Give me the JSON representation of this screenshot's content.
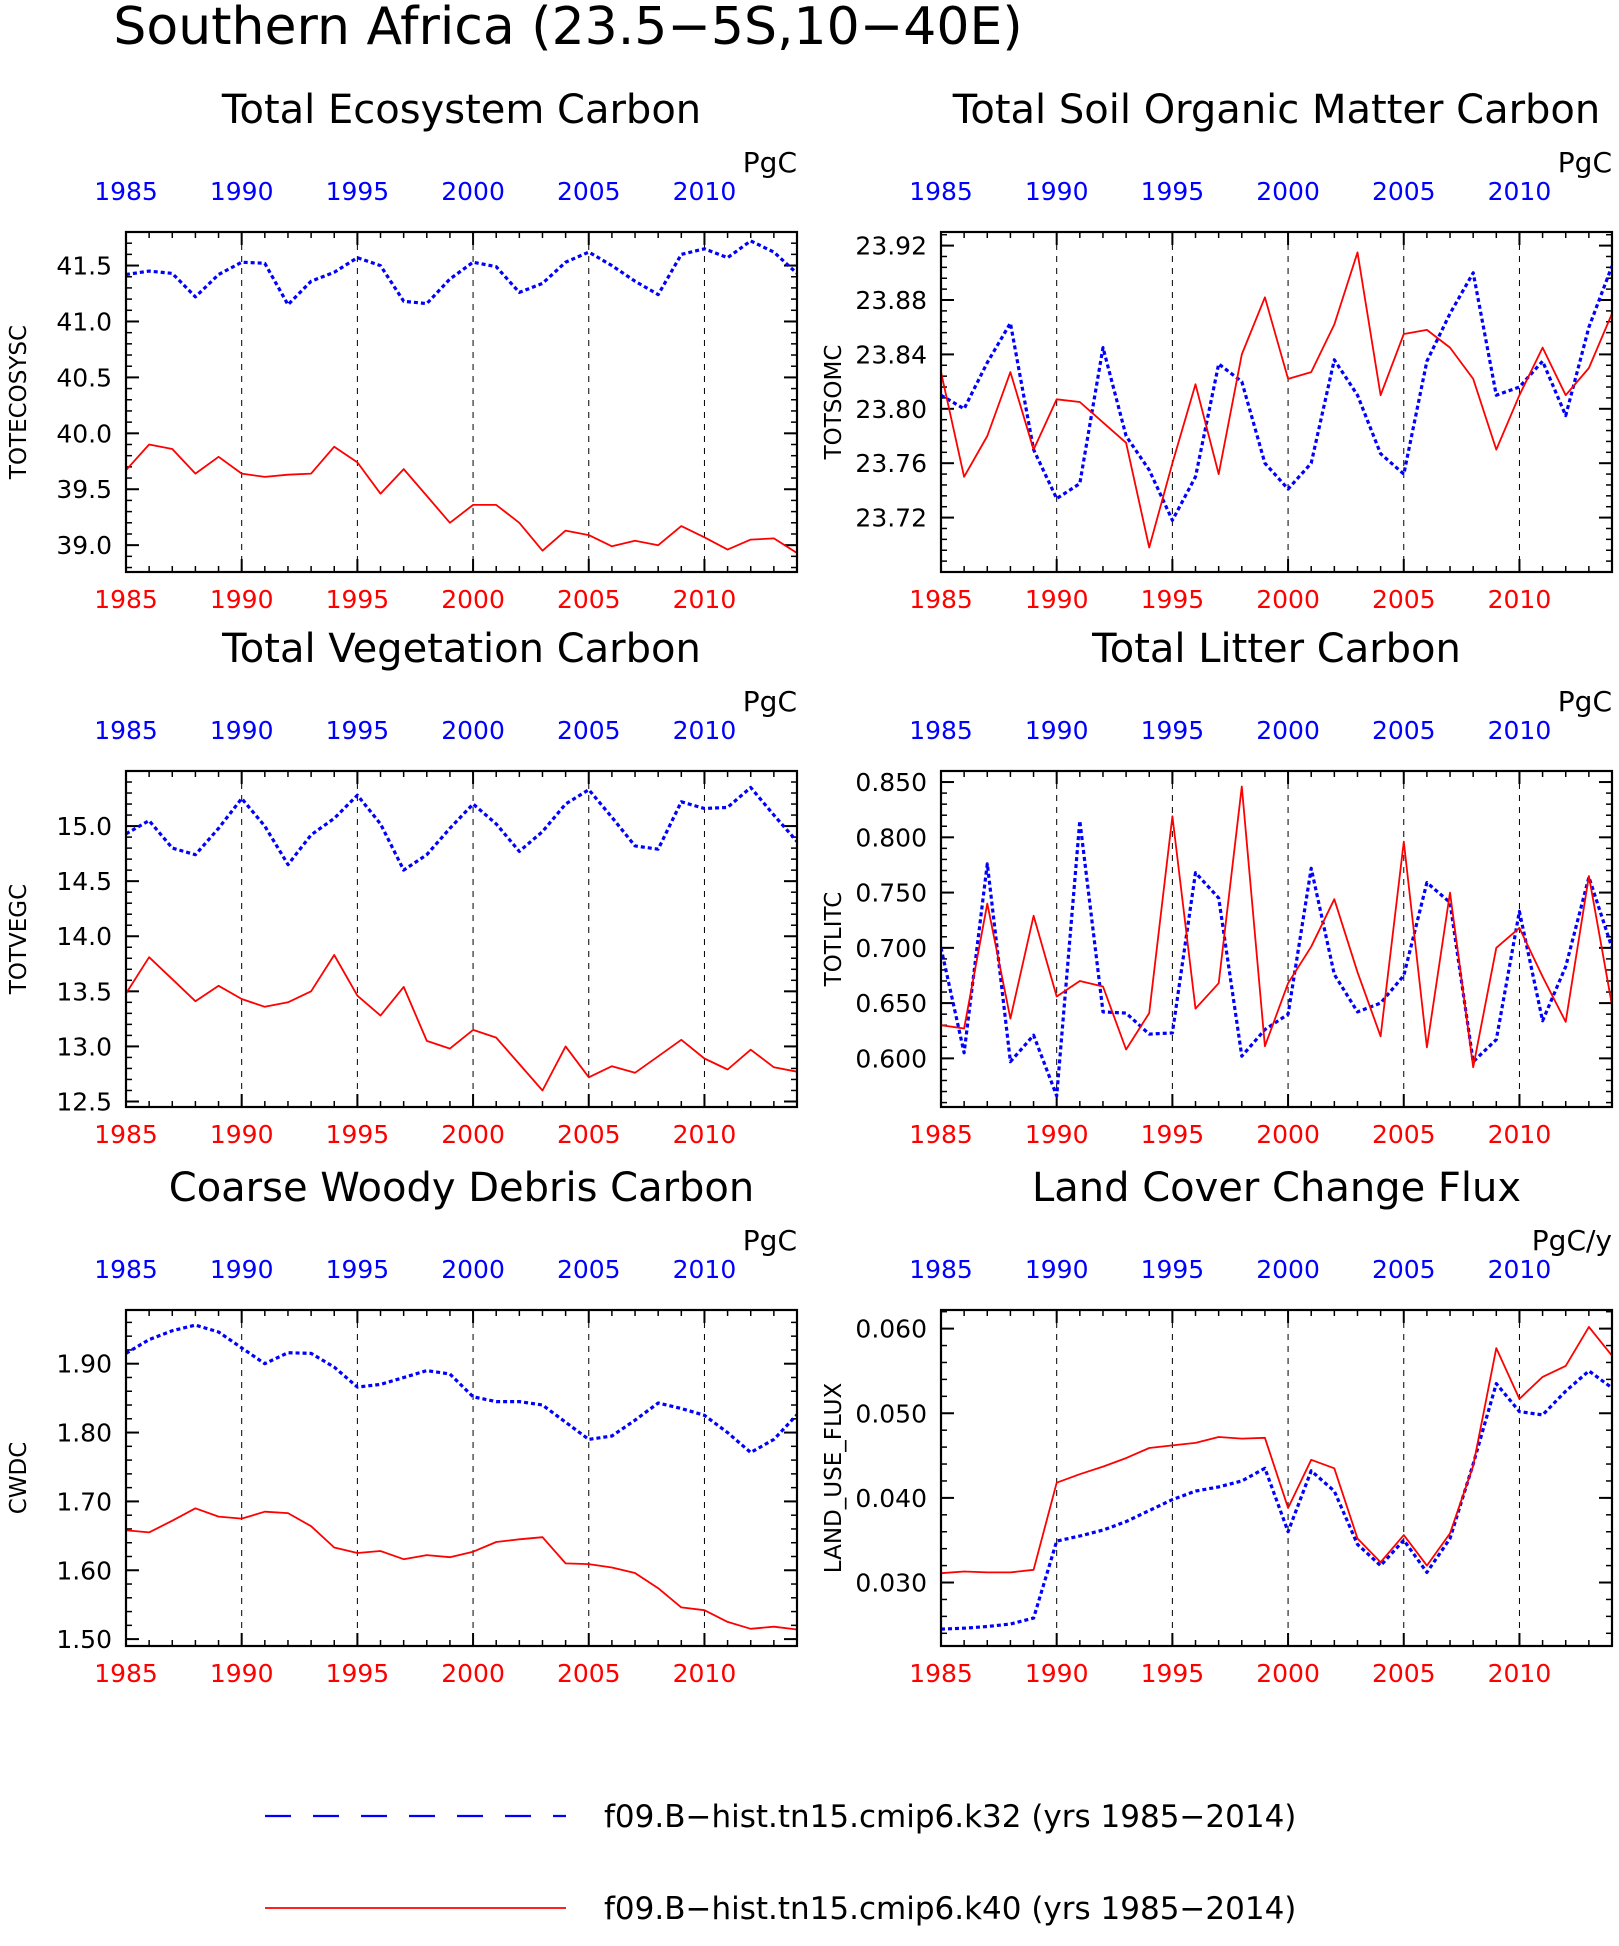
{
  "figure": {
    "title": "Southern Africa (23.5−5S,10−40E)",
    "colors": {
      "run_k32": "#0000ff",
      "run_k40": "#ff0000",
      "axis": "#000000"
    }
  },
  "legend": {
    "placement": "bottom-center",
    "entries": [
      {
        "label": "f09.B−hist.tn15.cmip6.k32 (yrs 1985−2014)",
        "color": "#0000ff",
        "style": "dashed"
      },
      {
        "label": "f09.B−hist.tn15.cmip6.k40 (yrs 1985−2014)",
        "color": "#ff0000",
        "style": "solid"
      }
    ]
  },
  "chart_data": [
    {
      "type": "line",
      "title": "Total Ecosystem Carbon",
      "ylabel": "TOTECOSYSC",
      "units": "PgC",
      "xlim": [
        1985,
        2014
      ],
      "ylim": [
        38.76,
        41.8
      ],
      "yticks": [
        39.0,
        39.5,
        40.0,
        40.5,
        41.0,
        41.5
      ],
      "ytick_labels": [
        "39.0",
        "39.5",
        "40.0",
        "40.5",
        "41.0",
        "41.5"
      ],
      "xticks": [
        1985,
        1990,
        1995,
        2000,
        2005,
        2010
      ],
      "x_tick_labels_top": [
        "1985",
        "1990",
        "1995",
        "2000",
        "2005",
        "2010"
      ],
      "x_tick_labels_bottom": [
        "1985",
        "1990",
        "1995",
        "2000",
        "2005",
        "2010"
      ],
      "x": [
        1985,
        1986,
        1987,
        1988,
        1989,
        1990,
        1991,
        1992,
        1993,
        1994,
        1995,
        1996,
        1997,
        1998,
        1999,
        2000,
        2001,
        2002,
        2003,
        2004,
        2005,
        2006,
        2007,
        2008,
        2009,
        2010,
        2011,
        2012,
        2013,
        2014
      ],
      "grid": "vertical-dashed",
      "series": [
        {
          "color": "#0000ff",
          "style": "dashed",
          "values": [
            41.42,
            41.45,
            41.43,
            41.22,
            41.42,
            41.53,
            41.52,
            41.15,
            41.36,
            41.44,
            41.57,
            41.5,
            41.18,
            41.16,
            41.38,
            41.53,
            41.49,
            41.26,
            41.34,
            41.53,
            41.62,
            41.5,
            41.36,
            41.24,
            41.6,
            41.65,
            41.57,
            41.72,
            41.62,
            41.43
          ]
        },
        {
          "color": "#ff0000",
          "style": "solid",
          "values": [
            39.67,
            39.9,
            39.86,
            39.64,
            39.79,
            39.64,
            39.61,
            39.63,
            39.64,
            39.88,
            39.74,
            39.46,
            39.68,
            39.44,
            39.2,
            39.36,
            39.36,
            39.2,
            38.95,
            39.13,
            39.09,
            38.99,
            39.04,
            39.0,
            39.17,
            39.07,
            38.96,
            39.05,
            39.06,
            38.93
          ]
        }
      ]
    },
    {
      "type": "line",
      "title": "Total Soil Organic Matter Carbon",
      "ylabel": "TOTSOMC",
      "units": "PgC",
      "xlim": [
        1985,
        2014
      ],
      "ylim": [
        23.68,
        23.93
      ],
      "yticks": [
        23.72,
        23.76,
        23.8,
        23.84,
        23.88,
        23.92
      ],
      "ytick_labels": [
        "23.72",
        "23.76",
        "23.80",
        "23.84",
        "23.88",
        "23.92"
      ],
      "xticks": [
        1985,
        1990,
        1995,
        2000,
        2005,
        2010
      ],
      "x_tick_labels_top": [
        "1985",
        "1990",
        "1995",
        "2000",
        "2005",
        "2010"
      ],
      "x_tick_labels_bottom": [
        "1985",
        "1990",
        "1995",
        "2000",
        "2005",
        "2010"
      ],
      "x": [
        1985,
        1986,
        1987,
        1988,
        1989,
        1990,
        1991,
        1992,
        1993,
        1994,
        1995,
        1996,
        1997,
        1998,
        1999,
        2000,
        2001,
        2002,
        2003,
        2004,
        2005,
        2006,
        2007,
        2008,
        2009,
        2010,
        2011,
        2012,
        2013,
        2014
      ],
      "grid": "vertical-dashed",
      "series": [
        {
          "color": "#0000ff",
          "style": "dashed",
          "values": [
            23.81,
            23.8,
            23.834,
            23.863,
            23.77,
            23.734,
            23.745,
            23.845,
            23.78,
            23.755,
            23.718,
            23.75,
            23.833,
            23.82,
            23.76,
            23.741,
            23.76,
            23.836,
            23.81,
            23.767,
            23.752,
            23.835,
            23.87,
            23.9,
            23.81,
            23.816,
            23.835,
            23.795,
            23.86,
            23.905
          ]
        },
        {
          "color": "#ff0000",
          "style": "solid",
          "values": [
            23.827,
            23.75,
            23.78,
            23.827,
            23.77,
            23.807,
            23.805,
            23.79,
            23.775,
            23.698,
            23.76,
            23.818,
            23.752,
            23.84,
            23.882,
            23.822,
            23.827,
            23.862,
            23.915,
            23.81,
            23.855,
            23.858,
            23.845,
            23.822,
            23.77,
            23.81,
            23.845,
            23.81,
            23.83,
            23.87
          ]
        }
      ]
    },
    {
      "type": "line",
      "title": "Total Vegetation Carbon",
      "ylabel": "TOTVEGC",
      "units": "PgC",
      "xlim": [
        1985,
        2014
      ],
      "ylim": [
        12.45,
        15.5
      ],
      "yticks": [
        12.5,
        13.0,
        13.5,
        14.0,
        14.5,
        15.0
      ],
      "ytick_labels": [
        "12.5",
        "13.0",
        "13.5",
        "14.0",
        "14.5",
        "15.0"
      ],
      "xticks": [
        1985,
        1990,
        1995,
        2000,
        2005,
        2010
      ],
      "x_tick_labels_top": [
        "1985",
        "1990",
        "1995",
        "2000",
        "2005",
        "2010"
      ],
      "x_tick_labels_bottom": [
        "1985",
        "1990",
        "1995",
        "2000",
        "2005",
        "2010"
      ],
      "x": [
        1985,
        1986,
        1987,
        1988,
        1989,
        1990,
        1991,
        1992,
        1993,
        1994,
        1995,
        1996,
        1997,
        1998,
        1999,
        2000,
        2001,
        2002,
        2003,
        2004,
        2005,
        2006,
        2007,
        2008,
        2009,
        2010,
        2011,
        2012,
        2013,
        2014
      ],
      "grid": "vertical-dashed",
      "series": [
        {
          "color": "#0000ff",
          "style": "dashed",
          "values": [
            14.93,
            15.05,
            14.8,
            14.74,
            14.98,
            15.25,
            15.0,
            14.65,
            14.92,
            15.07,
            15.28,
            15.02,
            14.6,
            14.74,
            14.98,
            15.2,
            15.02,
            14.77,
            14.95,
            15.2,
            15.33,
            15.08,
            14.82,
            14.79,
            15.22,
            15.16,
            15.17,
            15.35,
            15.1,
            14.86
          ]
        },
        {
          "color": "#ff0000",
          "style": "solid",
          "values": [
            13.48,
            13.81,
            13.61,
            13.41,
            13.55,
            13.43,
            13.36,
            13.4,
            13.5,
            13.83,
            13.46,
            13.28,
            13.54,
            13.05,
            12.98,
            13.15,
            13.08,
            12.84,
            12.6,
            13.0,
            12.72,
            12.82,
            12.76,
            12.91,
            13.06,
            12.89,
            12.79,
            12.97,
            12.81,
            12.77
          ]
        }
      ]
    },
    {
      "type": "line",
      "title": "Total Litter Carbon",
      "ylabel": "TOTLITC",
      "units": "PgC",
      "xlim": [
        1985,
        2014
      ],
      "ylim": [
        0.556,
        0.86
      ],
      "yticks": [
        0.6,
        0.65,
        0.7,
        0.75,
        0.8,
        0.85
      ],
      "ytick_labels": [
        "0.600",
        "0.650",
        "0.700",
        "0.750",
        "0.800",
        "0.850"
      ],
      "xticks": [
        1985,
        1990,
        1995,
        2000,
        2005,
        2010
      ],
      "x_tick_labels_top": [
        "1985",
        "1990",
        "1995",
        "2000",
        "2005",
        "2010"
      ],
      "x_tick_labels_bottom": [
        "1985",
        "1990",
        "1995",
        "2000",
        "2005",
        "2010"
      ],
      "x": [
        1985,
        1986,
        1987,
        1988,
        1989,
        1990,
        1991,
        1992,
        1993,
        1994,
        1995,
        1996,
        1997,
        1998,
        1999,
        2000,
        2001,
        2002,
        2003,
        2004,
        2005,
        2006,
        2007,
        2008,
        2009,
        2010,
        2011,
        2012,
        2013,
        2014
      ],
      "grid": "vertical-dashed",
      "series": [
        {
          "color": "#0000ff",
          "style": "dashed",
          "values": [
            0.7,
            0.605,
            0.776,
            0.597,
            0.621,
            0.566,
            0.815,
            0.642,
            0.641,
            0.622,
            0.623,
            0.768,
            0.745,
            0.602,
            0.626,
            0.64,
            0.772,
            0.676,
            0.642,
            0.65,
            0.675,
            0.759,
            0.741,
            0.597,
            0.617,
            0.733,
            0.634,
            0.683,
            0.764,
            0.7
          ]
        },
        {
          "color": "#ff0000",
          "style": "solid",
          "values": [
            0.63,
            0.627,
            0.74,
            0.636,
            0.729,
            0.656,
            0.67,
            0.665,
            0.608,
            0.641,
            0.819,
            0.645,
            0.668,
            0.846,
            0.611,
            0.668,
            0.701,
            0.744,
            0.678,
            0.62,
            0.796,
            0.61,
            0.75,
            0.592,
            0.7,
            0.718,
            0.674,
            0.633,
            0.765,
            0.648
          ]
        }
      ]
    },
    {
      "type": "line",
      "title": "Coarse Woody Debris Carbon",
      "ylabel": "CWDC",
      "units": "PgC",
      "xlim": [
        1985,
        2014
      ],
      "ylim": [
        1.49,
        1.978
      ],
      "yticks": [
        1.5,
        1.6,
        1.7,
        1.8,
        1.9
      ],
      "ytick_labels": [
        "1.50",
        "1.60",
        "1.70",
        "1.80",
        "1.90"
      ],
      "xticks": [
        1985,
        1990,
        1995,
        2000,
        2005,
        2010
      ],
      "x_tick_labels_top": [
        "1985",
        "1990",
        "1995",
        "2000",
        "2005",
        "2010"
      ],
      "x_tick_labels_bottom": [
        "1985",
        "1990",
        "1995",
        "2000",
        "2005",
        "2010"
      ],
      "x": [
        1985,
        1986,
        1987,
        1988,
        1989,
        1990,
        1991,
        1992,
        1993,
        1994,
        1995,
        1996,
        1997,
        1998,
        1999,
        2000,
        2001,
        2002,
        2003,
        2004,
        2005,
        2006,
        2007,
        2008,
        2009,
        2010,
        2011,
        2012,
        2013,
        2014
      ],
      "grid": "vertical-dashed",
      "series": [
        {
          "color": "#0000ff",
          "style": "dashed",
          "values": [
            1.915,
            1.935,
            1.948,
            1.956,
            1.946,
            1.923,
            1.9,
            1.916,
            1.915,
            1.895,
            1.866,
            1.87,
            1.88,
            1.89,
            1.885,
            1.852,
            1.845,
            1.845,
            1.84,
            1.815,
            1.79,
            1.795,
            1.818,
            1.843,
            1.835,
            1.825,
            1.8,
            1.771,
            1.79,
            1.826
          ]
        },
        {
          "color": "#ff0000",
          "style": "solid",
          "values": [
            1.658,
            1.655,
            1.672,
            1.69,
            1.678,
            1.675,
            1.685,
            1.683,
            1.664,
            1.633,
            1.625,
            1.628,
            1.616,
            1.622,
            1.619,
            1.627,
            1.641,
            1.645,
            1.648,
            1.61,
            1.609,
            1.604,
            1.596,
            1.574,
            1.546,
            1.542,
            1.525,
            1.515,
            1.518,
            1.514
          ]
        }
      ]
    },
    {
      "type": "line",
      "title": "Land Cover Change Flux",
      "ylabel": "LAND_USE_FLUX",
      "units": "PgC/y",
      "xlim": [
        1985,
        2014
      ],
      "ylim": [
        0.0225,
        0.0622
      ],
      "yticks": [
        0.03,
        0.04,
        0.05,
        0.06
      ],
      "ytick_labels": [
        "0.030",
        "0.040",
        "0.050",
        "0.060"
      ],
      "xticks": [
        1985,
        1990,
        1995,
        2000,
        2005,
        2010
      ],
      "x_tick_labels_top": [
        "1985",
        "1990",
        "1995",
        "2000",
        "2005",
        "2010"
      ],
      "x_tick_labels_bottom": [
        "1985",
        "1990",
        "1995",
        "2000",
        "2005",
        "2010"
      ],
      "x": [
        1985,
        1986,
        1987,
        1988,
        1989,
        1990,
        1991,
        1992,
        1993,
        1994,
        1995,
        1996,
        1997,
        1998,
        1999,
        2000,
        2001,
        2002,
        2003,
        2004,
        2005,
        2006,
        2007,
        2008,
        2009,
        2010,
        2011,
        2012,
        2013,
        2014
      ],
      "grid": "vertical-dashed",
      "series": [
        {
          "color": "#0000ff",
          "style": "dashed",
          "values": [
            0.0245,
            0.0246,
            0.0248,
            0.0251,
            0.0258,
            0.0349,
            0.0355,
            0.0362,
            0.0372,
            0.0385,
            0.0398,
            0.0408,
            0.0413,
            0.042,
            0.0435,
            0.036,
            0.0432,
            0.0408,
            0.0345,
            0.032,
            0.035,
            0.0312,
            0.0352,
            0.044,
            0.0535,
            0.0502,
            0.0498,
            0.0526,
            0.055,
            0.053
          ]
        },
        {
          "color": "#ff0000",
          "style": "solid",
          "values": [
            0.0311,
            0.0313,
            0.0312,
            0.0312,
            0.0315,
            0.0418,
            0.0428,
            0.0437,
            0.0447,
            0.0459,
            0.0462,
            0.0465,
            0.0472,
            0.047,
            0.0471,
            0.0388,
            0.0445,
            0.0435,
            0.0352,
            0.0324,
            0.0356,
            0.032,
            0.0358,
            0.0438,
            0.0577,
            0.0517,
            0.0543,
            0.0556,
            0.0602,
            0.0568
          ]
        }
      ]
    }
  ]
}
